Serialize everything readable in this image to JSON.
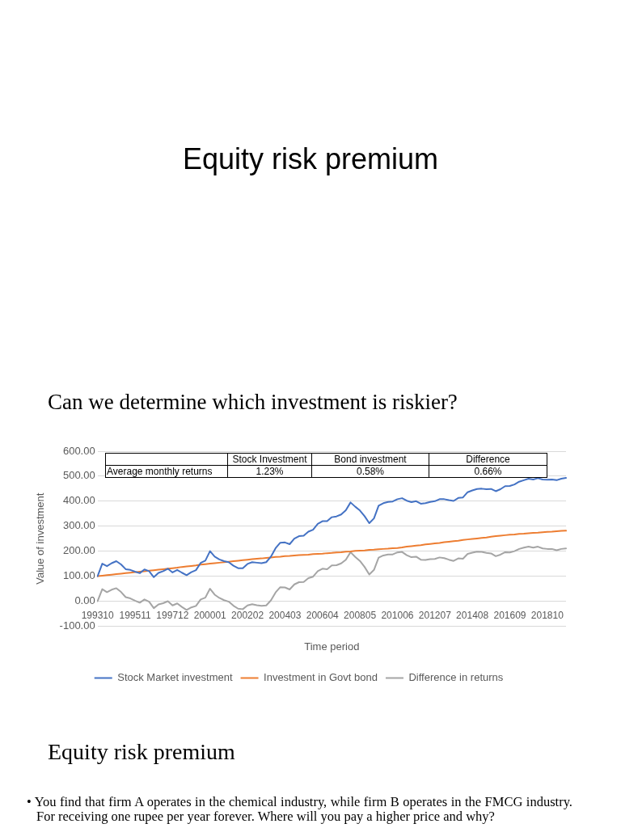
{
  "chart_data": [
    {
      "type": "line",
      "title": "Equity risk premium",
      "subtitle": "Can we determine which investment is riskier?",
      "xlabel": "Time period",
      "ylabel": "Value of investment",
      "categories": [
        "199310",
        null,
        null,
        null,
        null,
        null,
        null,
        null,
        "199511",
        null,
        null,
        null,
        null,
        null,
        null,
        null,
        "199712",
        null,
        null,
        null,
        null,
        null,
        null,
        null,
        "200001",
        null,
        null,
        null,
        null,
        null,
        null,
        null,
        "200202",
        null,
        null,
        null,
        null,
        null,
        null,
        null,
        "200403",
        null,
        null,
        null,
        null,
        null,
        null,
        null,
        "200604",
        null,
        null,
        null,
        null,
        null,
        null,
        null,
        "200805",
        null,
        null,
        null,
        null,
        null,
        null,
        null,
        "201006",
        null,
        null,
        null,
        null,
        null,
        null,
        null,
        "201207",
        null,
        null,
        null,
        null,
        null,
        null,
        null,
        "201408",
        null,
        null,
        null,
        null,
        null,
        null,
        null,
        "201609",
        null,
        null,
        null,
        null,
        null,
        null,
        null,
        "201810",
        null,
        null,
        null,
        null
      ],
      "series": [
        {
          "name": "Stock Market investment",
          "color": "#4472c4",
          "values": [
            100,
            150,
            140,
            152,
            160,
            147,
            128,
            125,
            118,
            112,
            127,
            120,
            96,
            113,
            120,
            130,
            115,
            125,
            114,
            104,
            116,
            124,
            153,
            162,
            200,
            178,
            167,
            160,
            156,
            142,
            132,
            132,
            149,
            156,
            154,
            152,
            156,
            178,
            212,
            234,
            235,
            228,
            250,
            260,
            262,
            278,
            286,
            309,
            320,
            320,
            336,
            339,
            347,
            364,
            395,
            378,
            363,
            340,
            312,
            331,
            382,
            392,
            397,
            399,
            408,
            412,
            402,
            396,
            400,
            390,
            392,
            397,
            400,
            408,
            408,
            404,
            401,
            413,
            415,
            436,
            443,
            449,
            450,
            448,
            449,
            440,
            448,
            460,
            461,
            467,
            478,
            484,
            490,
            487,
            492,
            487,
            486,
            487,
            484,
            490,
            493
          ]
        },
        {
          "name": "Investment in Govt bond",
          "color": "#ed7d31",
          "values": [
            100,
            102,
            104,
            106,
            108,
            110,
            112,
            114,
            116,
            118,
            120,
            122,
            124,
            126,
            128,
            130,
            132,
            134,
            137,
            139,
            141,
            143,
            146,
            148,
            150,
            152,
            154,
            156,
            158,
            160,
            162,
            164,
            166,
            168,
            170,
            171,
            173,
            175,
            177,
            178,
            180,
            181,
            183,
            184,
            185,
            186,
            188,
            189,
            190,
            192,
            193,
            195,
            196,
            198,
            199,
            201,
            202,
            203,
            205,
            206,
            208,
            209,
            210,
            212,
            213,
            215,
            218,
            220,
            222,
            224,
            227,
            229,
            231,
            233,
            236,
            238,
            240,
            242,
            245,
            247,
            249,
            251,
            253,
            255,
            258,
            260,
            262,
            264,
            266,
            267,
            269,
            270,
            272,
            273,
            274,
            276,
            277,
            278,
            280,
            281,
            282
          ]
        },
        {
          "name": "Difference in returns",
          "color": "#a5a5a5",
          "values": [
            0,
            48,
            36,
            46,
            52,
            37,
            16,
            11,
            2,
            -6,
            7,
            -2,
            -28,
            -13,
            -8,
            0,
            -17,
            -9,
            -23,
            -35,
            -25,
            -19,
            7,
            14,
            50,
            26,
            13,
            4,
            -2,
            -18,
            -30,
            -32,
            -17,
            -12,
            -16,
            -19,
            -17,
            3,
            35,
            56,
            55,
            47,
            67,
            76,
            77,
            92,
            98,
            120,
            130,
            128,
            143,
            144,
            151,
            166,
            196,
            177,
            161,
            137,
            107,
            125,
            174,
            183,
            187,
            187,
            195,
            197,
            184,
            176,
            178,
            166,
            165,
            168,
            169,
            175,
            172,
            166,
            161,
            171,
            170,
            189,
            194,
            198,
            197,
            193,
            191,
            180,
            186,
            196,
            195,
            200,
            209,
            214,
            218,
            214,
            218,
            211,
            209,
            209,
            204,
            209,
            211
          ]
        }
      ],
      "ylim": [
        -100,
        600
      ],
      "yticks": [
        {
          "value": -100,
          "label": "-100.00"
        },
        {
          "value": 0,
          "label": "0.00"
        },
        {
          "value": 100,
          "label": "100.00"
        },
        {
          "value": 200,
          "label": "200.00"
        },
        {
          "value": 300,
          "label": "300.00"
        },
        {
          "value": 400,
          "label": "400.00"
        },
        {
          "value": 500,
          "label": "500.00"
        },
        {
          "value": 600,
          "label": "600.00"
        }
      ],
      "grid": "y",
      "legend": "bottom",
      "annotations": [
        "Equity risk premium",
        "• You find that firm A operates in the chemical industry, while firm B operates in the FMCG industry. For receiving one rupee per year forever. Where will you pay a higher price and why?"
      ]
    },
    {
      "type": "other",
      "categories": [
        "Stock Investment",
        "Bond investment",
        "Difference"
      ],
      "y_categories": [
        "Average monthly returns"
      ],
      "cell_labels": [
        [
          "1.23%",
          "0.58%",
          "0.66%"
        ]
      ]
    }
  ]
}
